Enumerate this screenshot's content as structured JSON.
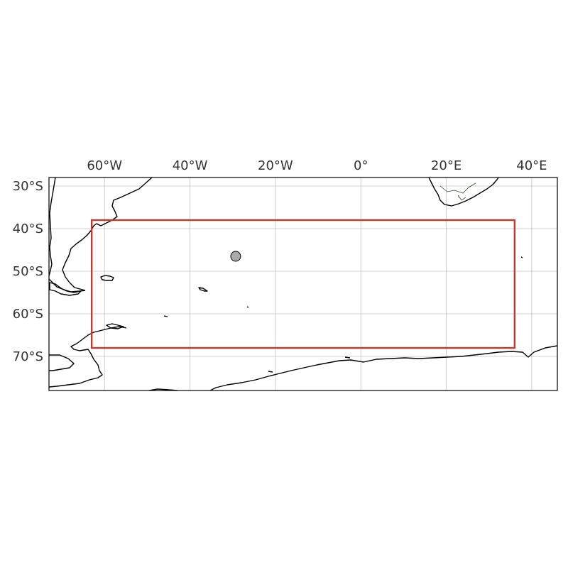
{
  "map": {
    "projection": "PlateCarree",
    "extent": {
      "lon": [
        -73,
        46
      ],
      "lat": [
        -28,
        -78
      ]
    },
    "gridlines": true,
    "colors": {
      "background": "#ffffff",
      "coastline": "#000000",
      "border": "#2f4f2f",
      "gridline": "#999999",
      "region_box": "#c0392b",
      "marker_fill": "#aaaaaa",
      "marker_edge": "#000000"
    },
    "xticks": [
      {
        "value": -60,
        "label": "60°W"
      },
      {
        "value": -40,
        "label": "40°W"
      },
      {
        "value": -20,
        "label": "20°W"
      },
      {
        "value": 0,
        "label": "0°"
      },
      {
        "value": 20,
        "label": "20°E"
      },
      {
        "value": 40,
        "label": "40°E"
      }
    ],
    "yticks": [
      {
        "value": -30,
        "label": "30°S"
      },
      {
        "value": -40,
        "label": "40°S"
      },
      {
        "value": -50,
        "label": "50°S"
      },
      {
        "value": -60,
        "label": "60°S"
      },
      {
        "value": -70,
        "label": "70°S"
      }
    ],
    "region_box": {
      "lon": [
        -63,
        36
      ],
      "lat": [
        -38,
        -68
      ]
    },
    "marker": {
      "lon": -29.3,
      "lat": -46.5
    }
  }
}
